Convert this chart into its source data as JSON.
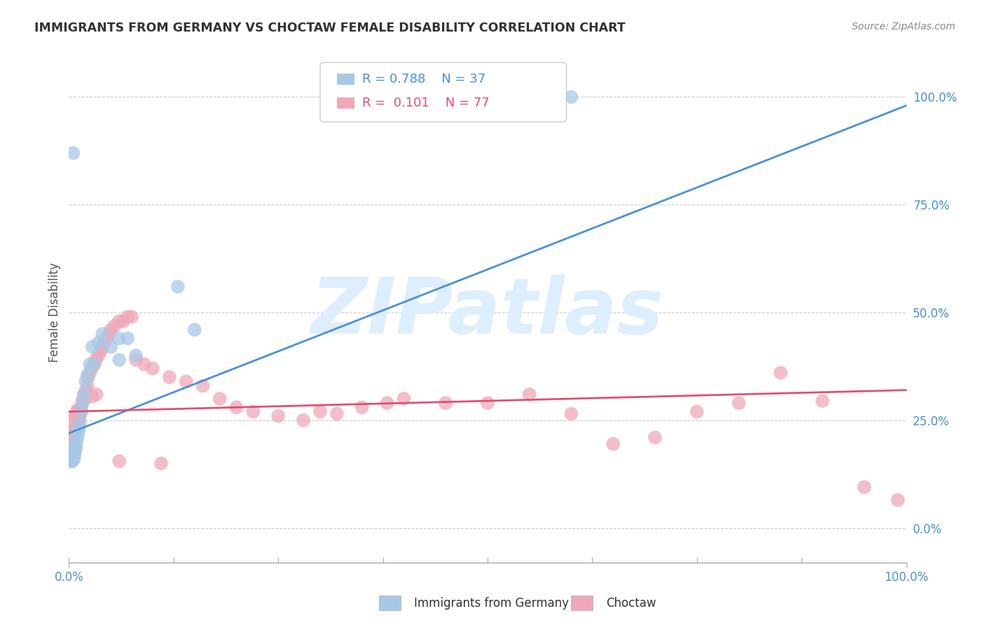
{
  "title": "IMMIGRANTS FROM GERMANY VS CHOCTAW FEMALE DISABILITY CORRELATION CHART",
  "source": "Source: ZipAtlas.com",
  "ylabel": "Female Disability",
  "blue_R": 0.788,
  "blue_N": 37,
  "pink_R": 0.101,
  "pink_N": 77,
  "blue_color": "#a8c8e8",
  "pink_color": "#f0a8b8",
  "blue_line_color": "#4a90d9",
  "pink_line_color": "#e05070",
  "watermark_color": "#ddeeff",
  "xlim": [
    0.0,
    1.0
  ],
  "ylim": [
    -0.08,
    1.08
  ],
  "blue_scatter_x": [
    0.002,
    0.003,
    0.003,
    0.004,
    0.004,
    0.005,
    0.005,
    0.006,
    0.006,
    0.007,
    0.007,
    0.008,
    0.008,
    0.009,
    0.01,
    0.011,
    0.012,
    0.013,
    0.015,
    0.016,
    0.018,
    0.02,
    0.022,
    0.025,
    0.028,
    0.03,
    0.035,
    0.04,
    0.05,
    0.06,
    0.07,
    0.13,
    0.15,
    0.06,
    0.08,
    0.6,
    0.005
  ],
  "blue_scatter_y": [
    0.155,
    0.16,
    0.165,
    0.155,
    0.17,
    0.175,
    0.165,
    0.16,
    0.175,
    0.18,
    0.17,
    0.185,
    0.19,
    0.2,
    0.21,
    0.22,
    0.23,
    0.24,
    0.27,
    0.29,
    0.31,
    0.34,
    0.355,
    0.38,
    0.42,
    0.38,
    0.43,
    0.45,
    0.42,
    0.44,
    0.44,
    0.56,
    0.46,
    0.39,
    0.4,
    1.0,
    0.87
  ],
  "pink_scatter_x": [
    0.002,
    0.003,
    0.004,
    0.004,
    0.005,
    0.005,
    0.006,
    0.006,
    0.007,
    0.008,
    0.008,
    0.009,
    0.01,
    0.011,
    0.012,
    0.013,
    0.014,
    0.015,
    0.016,
    0.018,
    0.02,
    0.022,
    0.023,
    0.025,
    0.027,
    0.03,
    0.032,
    0.035,
    0.038,
    0.04,
    0.042,
    0.045,
    0.048,
    0.05,
    0.055,
    0.06,
    0.065,
    0.07,
    0.075,
    0.08,
    0.09,
    0.1,
    0.12,
    0.14,
    0.16,
    0.18,
    0.2,
    0.22,
    0.25,
    0.28,
    0.3,
    0.32,
    0.35,
    0.38,
    0.4,
    0.45,
    0.5,
    0.55,
    0.6,
    0.65,
    0.7,
    0.75,
    0.8,
    0.85,
    0.9,
    0.95,
    0.99,
    0.005,
    0.007,
    0.009,
    0.011,
    0.016,
    0.019,
    0.028,
    0.033,
    0.06,
    0.11
  ],
  "pink_scatter_y": [
    0.175,
    0.195,
    0.2,
    0.215,
    0.21,
    0.22,
    0.215,
    0.225,
    0.22,
    0.225,
    0.235,
    0.23,
    0.235,
    0.24,
    0.25,
    0.26,
    0.27,
    0.28,
    0.29,
    0.31,
    0.32,
    0.33,
    0.35,
    0.36,
    0.37,
    0.38,
    0.39,
    0.4,
    0.41,
    0.42,
    0.43,
    0.44,
    0.45,
    0.46,
    0.47,
    0.48,
    0.48,
    0.49,
    0.49,
    0.39,
    0.38,
    0.37,
    0.35,
    0.34,
    0.33,
    0.3,
    0.28,
    0.27,
    0.26,
    0.25,
    0.27,
    0.265,
    0.28,
    0.29,
    0.3,
    0.29,
    0.29,
    0.31,
    0.265,
    0.195,
    0.21,
    0.27,
    0.29,
    0.36,
    0.295,
    0.095,
    0.065,
    0.25,
    0.26,
    0.27,
    0.275,
    0.295,
    0.3,
    0.305,
    0.31,
    0.155,
    0.15
  ],
  "blue_trendline": [
    0.0,
    1.0,
    0.22,
    0.98
  ],
  "pink_trendline": [
    0.0,
    1.0,
    0.27,
    0.32
  ]
}
